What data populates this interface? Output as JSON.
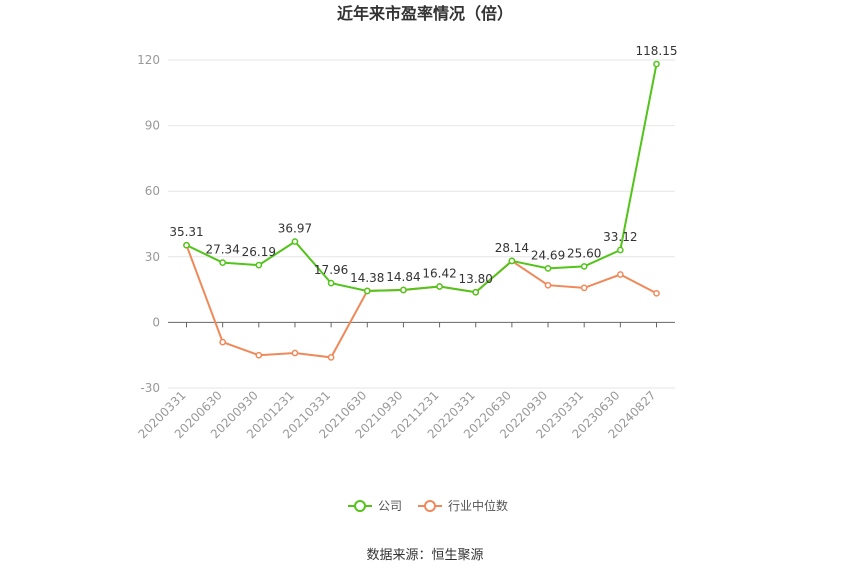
{
  "chart_data": {
    "type": "line",
    "title": "近年来市盈率情况（倍）",
    "categories": [
      "20200331",
      "20200630",
      "20200930",
      "20201231",
      "20210331",
      "20210630",
      "20210930",
      "20211231",
      "20220331",
      "20220630",
      "20220930",
      "20230331",
      "20230630",
      "20240827"
    ],
    "series": [
      {
        "name": "公司",
        "color": "#52c41a",
        "values": [
          35.31,
          27.34,
          26.19,
          36.97,
          17.96,
          14.38,
          14.84,
          16.42,
          13.8,
          28.14,
          24.69,
          25.6,
          33.12,
          118.15
        ],
        "labels": [
          "35.31",
          "27.34",
          "26.19",
          "36.97",
          "17.96",
          "14.38",
          "14.84",
          "16.42",
          "13.80",
          "28.14",
          "24.69",
          "25.60",
          "33.12",
          "118.15"
        ]
      },
      {
        "name": "行业中位数",
        "color": "#f0895a",
        "values": [
          35.3,
          -9.0,
          -15.0,
          -14.0,
          -16.0,
          14.4,
          14.8,
          16.4,
          13.8,
          28.1,
          17.0,
          15.8,
          21.9,
          13.3
        ]
      }
    ],
    "y_ticks": [
      "120",
      "90",
      "60",
      "30",
      "0",
      "-30"
    ],
    "ylim": [
      -30,
      120
    ],
    "grid": true,
    "legend_position": "bottom-center"
  },
  "source_text": "数据来源：恒生聚源"
}
